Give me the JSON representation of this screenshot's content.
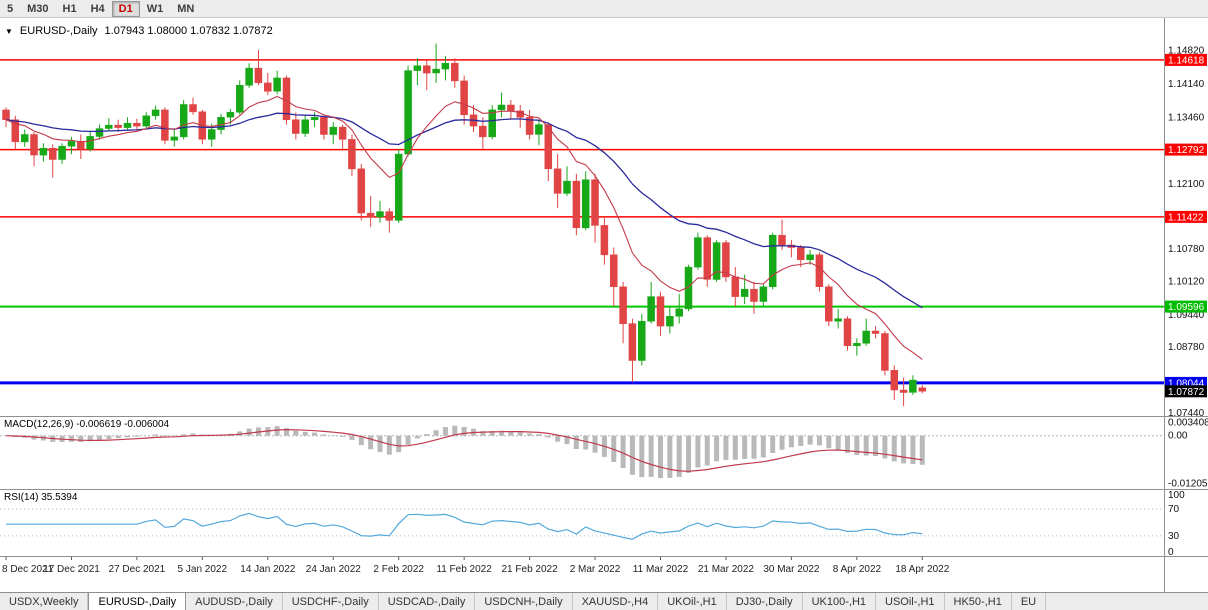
{
  "toolbar": {
    "timeframes": [
      "5",
      "M30",
      "H1",
      "H4",
      "D1",
      "W1",
      "MN"
    ],
    "active": "D1"
  },
  "chart": {
    "symbol_label": "EURUSD-,Daily",
    "ohlc_text": "1.07943 1.08000 1.07832 1.07872",
    "collapse_icon": "▼",
    "colors": {
      "up": "#17a817",
      "down": "#e04444",
      "ma_fast": "#c43a4b",
      "ma_slow": "#2a2a9e",
      "macd_hist": "#b9b9b9",
      "macd_signal": "#c03a4a",
      "rsi_line": "#54a8dc",
      "axis_text": "#111111",
      "date_text": "#222222",
      "border": "#8f8f8f"
    },
    "hlines": [
      {
        "price": 1.14618,
        "color": "#ff0000",
        "width": 1.5
      },
      {
        "price": 1.12792,
        "color": "#ff0000",
        "width": 1.5
      },
      {
        "price": 1.11422,
        "color": "#ff0000",
        "width": 1.5
      },
      {
        "price": 1.09596,
        "color": "#00c800",
        "width": 2
      },
      {
        "price": 1.08044,
        "color": "#0000f0",
        "width": 3
      }
    ],
    "price_axis": {
      "labels": [
        "1.14820",
        "1.14140",
        "1.13460",
        "1.12100",
        "1.10780",
        "1.10120",
        "1.09440",
        "1.08780",
        "1.07440"
      ],
      "badges": [
        {
          "text": "1.14618",
          "price": 1.14618,
          "color": "#ff0000"
        },
        {
          "text": "1.12792",
          "price": 1.12792,
          "color": "#ff0000"
        },
        {
          "text": "1.11422",
          "price": 1.11422,
          "color": "#ff0000"
        },
        {
          "text": "1.09596",
          "price": 1.09596,
          "color": "#00bb00"
        },
        {
          "text": "1.08044",
          "price": 1.08044,
          "color": "#0000f0"
        },
        {
          "text": "1.07872",
          "price": 1.07872,
          "color": "#000000"
        }
      ]
    },
    "date_labels": [
      "8 Dec 2021",
      "17 Dec 2021",
      "27 Dec 2021",
      "5 Jan 2022",
      "14 Jan 2022",
      "24 Jan 2022",
      "2 Feb 2022",
      "11 Feb 2022",
      "21 Feb 2022",
      "2 Mar 2022",
      "11 Mar 2022",
      "21 Mar 2022",
      "30 Mar 2022",
      "8 Apr 2022",
      "18 Apr 2022"
    ],
    "label_step": 7,
    "candles": [
      [
        1.136,
        1.1365,
        1.1325,
        1.134
      ],
      [
        1.134,
        1.1348,
        1.128,
        1.1295
      ],
      [
        1.1295,
        1.132,
        1.1285,
        1.131
      ],
      [
        1.131,
        1.1315,
        1.1245,
        1.1268
      ],
      [
        1.1268,
        1.1292,
        1.1255,
        1.1282
      ],
      [
        1.1282,
        1.129,
        1.1222,
        1.1259
      ],
      [
        1.1259,
        1.1292,
        1.125,
        1.1286
      ],
      [
        1.1286,
        1.1305,
        1.127,
        1.1296
      ],
      [
        1.1296,
        1.131,
        1.126,
        1.128
      ],
      [
        1.128,
        1.1315,
        1.1275,
        1.1306
      ],
      [
        1.1306,
        1.133,
        1.13,
        1.1322
      ],
      [
        1.1322,
        1.1343,
        1.1317,
        1.1329
      ],
      [
        1.1329,
        1.134,
        1.1315,
        1.1324
      ],
      [
        1.1324,
        1.1345,
        1.1318,
        1.1333
      ],
      [
        1.1333,
        1.1342,
        1.132,
        1.1327
      ],
      [
        1.1327,
        1.1355,
        1.1322,
        1.1348
      ],
      [
        1.1348,
        1.1369,
        1.134,
        1.136
      ],
      [
        1.136,
        1.1365,
        1.129,
        1.1298
      ],
      [
        1.1298,
        1.132,
        1.1285,
        1.1305
      ],
      [
        1.1305,
        1.138,
        1.13,
        1.1371
      ],
      [
        1.1371,
        1.1385,
        1.135,
        1.1356
      ],
      [
        1.1356,
        1.136,
        1.129,
        1.13
      ],
      [
        1.13,
        1.1332,
        1.1285,
        1.132
      ],
      [
        1.132,
        1.1352,
        1.131,
        1.1345
      ],
      [
        1.1345,
        1.1362,
        1.133,
        1.1355
      ],
      [
        1.1355,
        1.142,
        1.135,
        1.141
      ],
      [
        1.141,
        1.1455,
        1.1405,
        1.1445
      ],
      [
        1.1445,
        1.1482,
        1.141,
        1.1415
      ],
      [
        1.1415,
        1.1435,
        1.139,
        1.1398
      ],
      [
        1.1398,
        1.144,
        1.1392,
        1.1425
      ],
      [
        1.1425,
        1.143,
        1.133,
        1.134
      ],
      [
        1.134,
        1.1355,
        1.13,
        1.1312
      ],
      [
        1.1312,
        1.135,
        1.1305,
        1.134
      ],
      [
        1.134,
        1.1355,
        1.1325,
        1.1345
      ],
      [
        1.1345,
        1.135,
        1.13,
        1.131
      ],
      [
        1.131,
        1.1335,
        1.129,
        1.1325
      ],
      [
        1.1325,
        1.133,
        1.128,
        1.13
      ],
      [
        1.13,
        1.131,
        1.1225,
        1.124
      ],
      [
        1.124,
        1.125,
        1.1135,
        1.115
      ],
      [
        1.115,
        1.1185,
        1.1122,
        1.1142
      ],
      [
        1.1142,
        1.1175,
        1.113,
        1.1153
      ],
      [
        1.1153,
        1.116,
        1.111,
        1.1135
      ],
      [
        1.1135,
        1.128,
        1.113,
        1.127
      ],
      [
        1.127,
        1.145,
        1.1265,
        1.144
      ],
      [
        1.144,
        1.1465,
        1.141,
        1.145
      ],
      [
        1.145,
        1.146,
        1.14,
        1.1435
      ],
      [
        1.1435,
        1.1495,
        1.1415,
        1.1443
      ],
      [
        1.1443,
        1.147,
        1.142,
        1.1455
      ],
      [
        1.1455,
        1.1465,
        1.1405,
        1.1419
      ],
      [
        1.1419,
        1.143,
        1.133,
        1.135
      ],
      [
        1.135,
        1.137,
        1.1315,
        1.1327
      ],
      [
        1.1327,
        1.1345,
        1.128,
        1.1305
      ],
      [
        1.1305,
        1.137,
        1.13,
        1.136
      ],
      [
        1.136,
        1.1395,
        1.1345,
        1.137
      ],
      [
        1.137,
        1.138,
        1.134,
        1.1358
      ],
      [
        1.1358,
        1.137,
        1.1324,
        1.1345
      ],
      [
        1.1345,
        1.136,
        1.13,
        1.131
      ],
      [
        1.131,
        1.134,
        1.1288,
        1.133
      ],
      [
        1.133,
        1.1335,
        1.1215,
        1.124
      ],
      [
        1.124,
        1.127,
        1.116,
        1.119
      ],
      [
        1.119,
        1.1245,
        1.1185,
        1.1215
      ],
      [
        1.1215,
        1.123,
        1.1105,
        1.112
      ],
      [
        1.112,
        1.1235,
        1.1115,
        1.1218
      ],
      [
        1.1218,
        1.123,
        1.109,
        1.1125
      ],
      [
        1.1125,
        1.114,
        1.1045,
        1.1065
      ],
      [
        1.1065,
        1.108,
        1.096,
        1.1
      ],
      [
        1.1,
        1.101,
        1.0885,
        1.0925
      ],
      [
        1.0925,
        1.0935,
        1.0806,
        1.085
      ],
      [
        1.085,
        1.0945,
        1.084,
        1.093
      ],
      [
        1.093,
        1.101,
        1.0925,
        1.098
      ],
      [
        1.098,
        1.099,
        1.09,
        1.092
      ],
      [
        1.092,
        1.096,
        1.0905,
        1.094
      ],
      [
        1.094,
        1.0985,
        1.0925,
        1.0955
      ],
      [
        1.0955,
        1.1045,
        1.095,
        1.104
      ],
      [
        1.104,
        1.111,
        1.1035,
        1.11
      ],
      [
        1.11,
        1.1105,
        1.1,
        1.1015
      ],
      [
        1.1015,
        1.1095,
        1.101,
        1.109
      ],
      [
        1.109,
        1.1095,
        1.101,
        1.102
      ],
      [
        1.102,
        1.104,
        1.096,
        1.098
      ],
      [
        1.098,
        1.1025,
        1.0965,
        1.0995
      ],
      [
        1.0995,
        1.101,
        1.0945,
        1.097
      ],
      [
        1.097,
        1.1005,
        1.096,
        1.1
      ],
      [
        1.1,
        1.111,
        1.0995,
        1.1105
      ],
      [
        1.1105,
        1.1137,
        1.1075,
        1.1085
      ],
      [
        1.1085,
        1.1095,
        1.106,
        1.108
      ],
      [
        1.108,
        1.1085,
        1.104,
        1.1055
      ],
      [
        1.1055,
        1.1075,
        1.1045,
        1.1065
      ],
      [
        1.1065,
        1.107,
        1.099,
        1.1
      ],
      [
        1.1,
        1.1005,
        1.092,
        1.093
      ],
      [
        1.093,
        1.0955,
        1.0915,
        1.0935
      ],
      [
        1.0935,
        1.094,
        1.087,
        1.088
      ],
      [
        1.088,
        1.0895,
        1.086,
        1.0885
      ],
      [
        1.0885,
        1.0935,
        1.088,
        1.091
      ],
      [
        1.091,
        1.092,
        1.0895,
        1.0905
      ],
      [
        1.0905,
        1.091,
        1.082,
        1.083
      ],
      [
        1.083,
        1.084,
        1.077,
        1.079
      ],
      [
        1.079,
        1.0815,
        1.0757,
        1.0785
      ],
      [
        1.0785,
        1.082,
        1.078,
        1.081
      ],
      [
        1.07943,
        1.08,
        1.07832,
        1.07872
      ]
    ]
  },
  "macd": {
    "label_text": "MACD(12,26,9) -0.006619 -0.006004",
    "axis": [
      "0.003408",
      "0.00",
      "-0.012058"
    ],
    "params": {
      "fast": 12,
      "slow": 26,
      "signal": 9
    }
  },
  "rsi": {
    "label_text": "RSI(14) 35.5394",
    "axis": [
      "100",
      "70",
      "30",
      "0"
    ],
    "period": 14
  },
  "tabs": {
    "items": [
      "USDX,Weekly",
      "EURUSD-,Daily",
      "AUDUSD-,Daily",
      "USDCHF-,Daily",
      "USDCAD-,Daily",
      "USDCNH-,Daily",
      "XAUUSD-,H4",
      "UKOil-,H1",
      "DJ30-,Daily",
      "UK100-,H1",
      "USOil-,H1",
      "HK50-,H1",
      "EU"
    ],
    "active_index": 1
  }
}
